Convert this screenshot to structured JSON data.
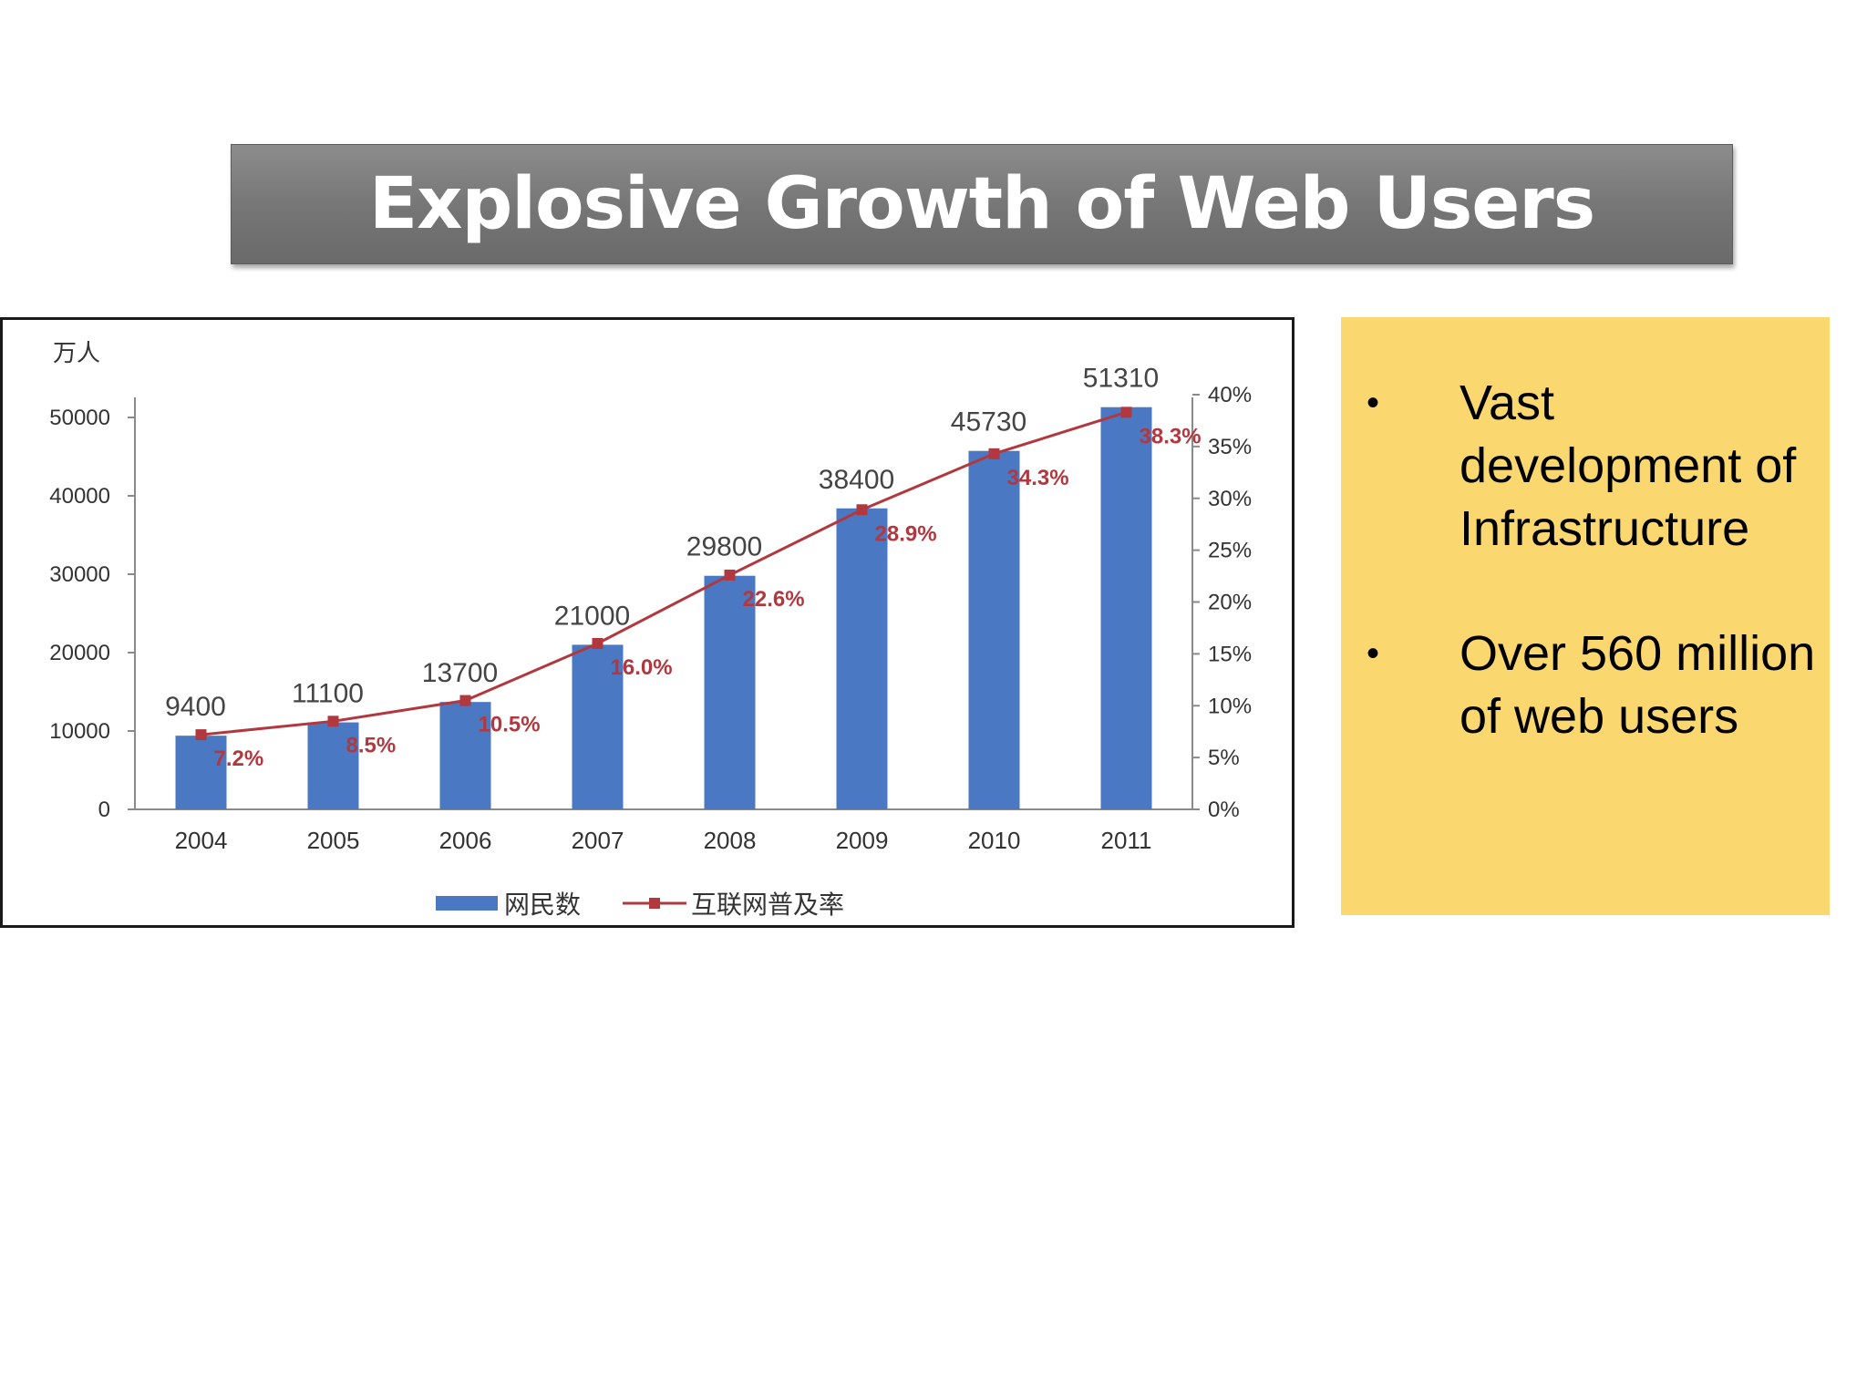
{
  "slide": {
    "title": "Explosive Growth of Web Users"
  },
  "info_box": {
    "bullets": [
      "Vast development of Infrastructure",
      "Over 560 million of web users"
    ],
    "background_color": "#fbd76f"
  },
  "chart_data": {
    "type": "bar",
    "y_unit_label": "万人",
    "categories": [
      "2004",
      "2005",
      "2006",
      "2007",
      "2008",
      "2009",
      "2010",
      "2011"
    ],
    "series": [
      {
        "name": "网民数",
        "type": "bar",
        "axis": "left",
        "color": "#4a78c2",
        "values": [
          9400,
          11100,
          13700,
          21000,
          29800,
          38400,
          45730,
          51310
        ],
        "labels": [
          "9400",
          "11100",
          "13700",
          "21000",
          "29800",
          "38400",
          "45730",
          "51310"
        ]
      },
      {
        "name": "互联网普及率",
        "type": "line",
        "axis": "right",
        "color": "#b1383f",
        "values": [
          7.2,
          8.5,
          10.5,
          16.0,
          22.6,
          28.9,
          34.3,
          38.3
        ],
        "labels": [
          "7.2%",
          "8.5%",
          "10.5%",
          "16.0%",
          "22.6%",
          "28.9%",
          "34.3%",
          "38.3%"
        ]
      }
    ],
    "y_left": {
      "min": 0,
      "max": 50000,
      "ticks": [
        "0",
        "10000",
        "20000",
        "30000",
        "40000",
        "50000"
      ]
    },
    "y_right": {
      "min": 0,
      "max": 40,
      "ticks": [
        "0%",
        "5%",
        "10%",
        "15%",
        "20%",
        "25%",
        "30%",
        "35%",
        "40%"
      ]
    },
    "legend_position": "bottom-center",
    "grid": false
  }
}
